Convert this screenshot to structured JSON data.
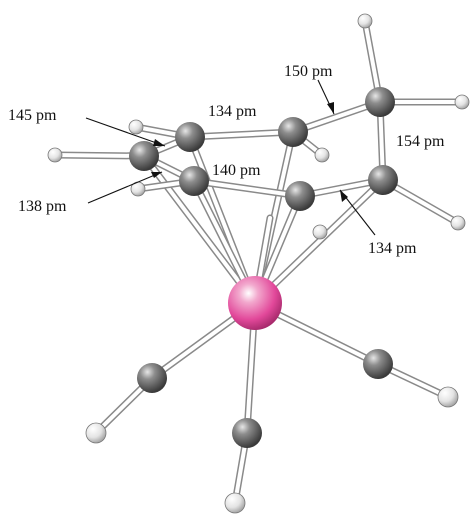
{
  "figure": {
    "colors": {
      "metal": "#e2489a",
      "carbon": "#5a5a5a",
      "hydrogen": "#dedede",
      "oxygen": "#e2e2e2"
    },
    "labels": {
      "c1_c2": "145 pm",
      "c2_c3": "134 pm",
      "c3_c4": "150 pm",
      "c4_c5": "154 pm",
      "c5_c6": "134 pm",
      "c6_c7": "140 pm",
      "c7_c1": "138 pm"
    }
  }
}
